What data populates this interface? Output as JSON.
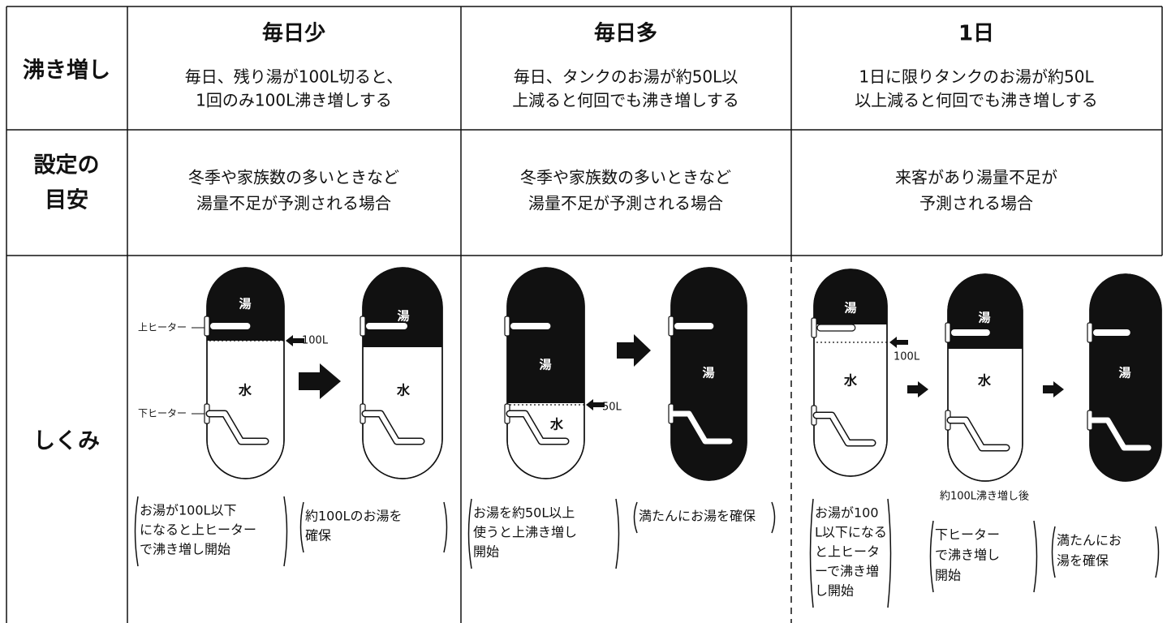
{
  "row_headers": [
    [
      "沸き増し"
    ],
    [
      "設定の",
      "目安"
    ],
    [
      "しくみ"
    ]
  ],
  "columns": [
    {
      "title": "毎日少",
      "description": [
        "毎日、残り湯が100L切ると、",
        "1回のみ100L沸き増しする"
      ],
      "guide": [
        "冬季や家族数の多いときなど",
        "湯量不足が予測される場合"
      ],
      "captions": [
        [
          "お湯が100L以下",
          "になると上ヒーター",
          "で沸き増し開始"
        ],
        [
          "約100Lのお湯を",
          "確保"
        ]
      ]
    },
    {
      "title": "毎日多",
      "description": [
        "毎日、タンクのお湯が約50L以",
        "上減ると何回でも沸き増しする"
      ],
      "guide": [
        "冬季や家族数の多いときなど",
        "湯量不足が予測される場合"
      ],
      "captions": [
        [
          "お湯を約50L以上",
          "使うと上沸き増し",
          "開始"
        ],
        [
          "満たんにお湯を確保"
        ]
      ]
    },
    {
      "title": "1日",
      "description": [
        "1日に限りタンクのお湯が約50L",
        "以上減ると何回でも沸き増しする"
      ],
      "guide": [
        "来客があり湯量不足が",
        "予測される場合"
      ],
      "captions": [
        [
          "お湯が100",
          "L以下になる",
          "と上ヒータ",
          "ーで沸き増",
          "し開始"
        ],
        [
          "下ヒーター",
          "で沸き増し",
          "開始"
        ],
        [
          "満たんにお",
          "湯を確保"
        ]
      ]
    }
  ],
  "diagram_labels": {
    "hot": "湯",
    "water": "水",
    "upper_heater": "上ヒーター",
    "lower_heater": "下ヒーター",
    "mark_100": "100L",
    "mark_50": "50L",
    "after": "約100L沸き増し後"
  }
}
